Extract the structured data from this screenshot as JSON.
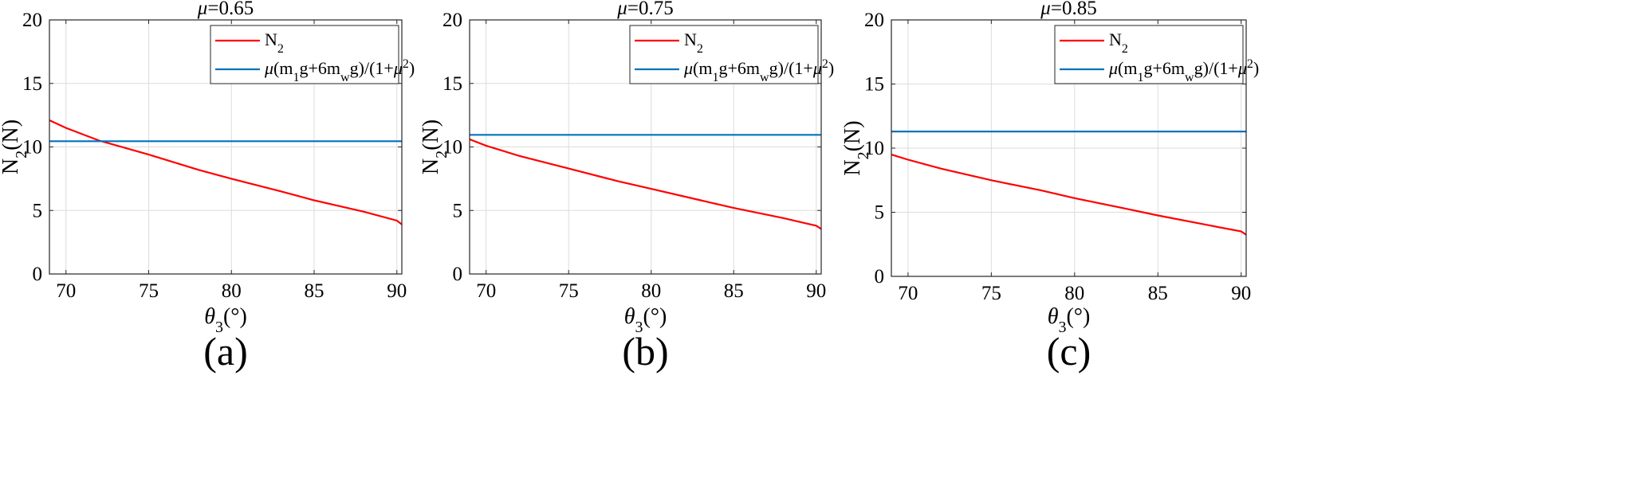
{
  "chart_data": [
    {
      "type": "line",
      "title": "μ=0.65",
      "panel_label": "(a)",
      "xlabel": "θ3(°)",
      "ylabel": "N2(N)",
      "xlim": [
        69,
        90.3
      ],
      "ylim": [
        0,
        20
      ],
      "xticks": [
        "70",
        "75",
        "80",
        "85",
        "90"
      ],
      "yticks": [
        "0",
        "5",
        "10",
        "15",
        "20"
      ],
      "grid": true,
      "legend_position": "top-right",
      "series": [
        {
          "name": "N2",
          "color": "#ff0000",
          "x": [
            69,
            70,
            72,
            75,
            78,
            80,
            83,
            85,
            88,
            90,
            90.3
          ],
          "y": [
            12.1,
            11.5,
            10.5,
            9.4,
            8.2,
            7.5,
            6.5,
            5.8,
            4.9,
            4.2,
            3.9
          ]
        },
        {
          "name": "μ(m1g+6mwg)/(1+μ2)",
          "color": "#0072bd",
          "x": [
            69,
            90.3
          ],
          "y": [
            10.45,
            10.45
          ]
        }
      ]
    },
    {
      "type": "line",
      "title": "μ=0.75",
      "panel_label": "(b)",
      "xlabel": "θ3(°)",
      "ylabel": "N2(N)",
      "xlim": [
        69,
        90.3
      ],
      "ylim": [
        0,
        20
      ],
      "xticks": [
        "70",
        "75",
        "80",
        "85",
        "90"
      ],
      "yticks": [
        "0",
        "5",
        "10",
        "15",
        "20"
      ],
      "grid": true,
      "legend_position": "top-right",
      "series": [
        {
          "name": "N2",
          "color": "#ff0000",
          "x": [
            69,
            70,
            72,
            75,
            78,
            80,
            83,
            85,
            88,
            90,
            90.3
          ],
          "y": [
            10.6,
            10.1,
            9.3,
            8.3,
            7.3,
            6.7,
            5.8,
            5.2,
            4.4,
            3.8,
            3.55
          ]
        },
        {
          "name": "μ(m1g+6mwg)/(1+μ2)",
          "color": "#0072bd",
          "x": [
            69,
            90.3
          ],
          "y": [
            10.95,
            10.95
          ]
        }
      ]
    },
    {
      "type": "line",
      "title": "μ=0.85",
      "panel_label": "(c)",
      "xlabel": "θ3(°)",
      "ylabel": "N2(N)",
      "xlim": [
        69,
        90.3
      ],
      "ylim": [
        0,
        20
      ],
      "xticks": [
        "70",
        "75",
        "80",
        "85",
        "90"
      ],
      "yticks": [
        "0",
        "5",
        "10",
        "15",
        "20"
      ],
      "grid": true,
      "legend_position": "top-right",
      "series": [
        {
          "name": "N2",
          "color": "#ff0000",
          "x": [
            69,
            70,
            72,
            75,
            78,
            80,
            83,
            85,
            88,
            90,
            90.3
          ],
          "y": [
            9.5,
            9.1,
            8.4,
            7.5,
            6.7,
            6.1,
            5.3,
            4.75,
            4.0,
            3.5,
            3.25
          ]
        },
        {
          "name": "μ(m1g+6mwg)/(1+μ2)",
          "color": "#0072bd",
          "x": [
            69,
            90.3
          ],
          "y": [
            11.3,
            11.3
          ]
        }
      ]
    }
  ]
}
